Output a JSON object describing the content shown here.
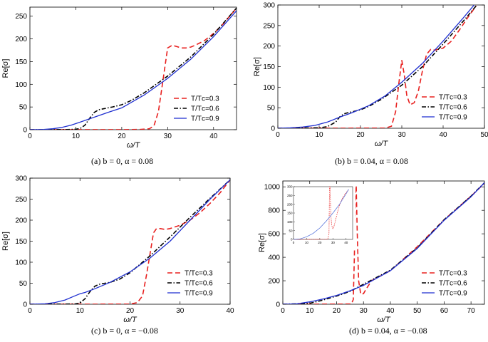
{
  "colors": {
    "t03": "#e8201f",
    "t06": "#000000",
    "t09": "#1f2fd0",
    "inset": "#4a6bd8"
  },
  "legend": [
    "T/Tᴄ=0.3",
    "T/Tᴄ=0.6",
    "T/Tᴄ=0.9"
  ],
  "chart_data": [
    {
      "type": "line",
      "caption": "(a)  b = 0,  α = 0.08",
      "xlabel": "ω/T",
      "ylabel": "Re[σ]",
      "xlim": [
        0,
        45
      ],
      "ylim": [
        0,
        270
      ],
      "xticks": [
        0,
        10,
        20,
        30,
        40
      ],
      "yticks": [
        0,
        50,
        100,
        150,
        200,
        250
      ],
      "series": [
        {
          "name": "T/Tc=0.3",
          "x": [
            0,
            20,
            24,
            26,
            27,
            28,
            29,
            30,
            31,
            32,
            33,
            34,
            35,
            36,
            38,
            40,
            42,
            45
          ],
          "values": [
            0,
            0.2,
            0.5,
            2,
            8,
            40,
            110,
            180,
            186,
            183,
            180,
            180,
            182,
            186,
            196,
            212,
            232,
            268
          ]
        },
        {
          "name": "T/Tc=0.6",
          "x": [
            0,
            8,
            10,
            11,
            12,
            13,
            14,
            15,
            16,
            17,
            18,
            20,
            22,
            25,
            30,
            35,
            40,
            45
          ],
          "values": [
            0,
            0.3,
            1,
            3,
            10,
            25,
            38,
            44,
            46,
            48,
            50,
            55,
            64,
            82,
            118,
            160,
            210,
            268
          ]
        },
        {
          "name": "T/Tc=0.9",
          "x": [
            0,
            3,
            5,
            7,
            9,
            11,
            13,
            15,
            17,
            20,
            25,
            30,
            35,
            40,
            45
          ],
          "values": [
            0,
            0.5,
            2,
            5,
            10,
            17,
            24,
            31,
            38,
            48,
            77,
            113,
            155,
            205,
            262
          ]
        }
      ]
    },
    {
      "type": "line",
      "caption": "(b)  b = 0.04,  α = 0.08",
      "xlabel": "ω/T",
      "ylabel": "Re[σ]",
      "xlim": [
        0,
        50
      ],
      "ylim": [
        0,
        300
      ],
      "xticks": [
        0,
        10,
        20,
        30,
        40,
        50
      ],
      "yticks": [
        0,
        50,
        100,
        150,
        200,
        250,
        300
      ],
      "series": [
        {
          "name": "T/Tc=0.3",
          "x": [
            0,
            26,
            27.5,
            28.5,
            29.3,
            30,
            30.6,
            31.2,
            32,
            33,
            34,
            35,
            36,
            37,
            38,
            40,
            42,
            44,
            46,
            48
          ],
          "values": [
            0,
            0.3,
            5,
            40,
            110,
            165,
            130,
            80,
            57,
            62,
            90,
            140,
            180,
            192,
            190,
            195,
            212,
            240,
            270,
            298
          ]
        },
        {
          "name": "T/Tc=0.6",
          "x": [
            0,
            10,
            12,
            14,
            15,
            16,
            17,
            18,
            20,
            22,
            25,
            30,
            35,
            40,
            45,
            48
          ],
          "values": [
            0,
            1,
            4,
            15,
            28,
            35,
            38,
            40,
            45,
            53,
            70,
            105,
            150,
            205,
            262,
            298
          ]
        },
        {
          "name": "T/Tc=0.9",
          "x": [
            0,
            3,
            6,
            9,
            12,
            15,
            18,
            22,
            26,
            30,
            35,
            40,
            45,
            47.5
          ],
          "values": [
            0,
            1,
            3,
            7,
            15,
            27,
            38,
            55,
            79,
            112,
            158,
            212,
            270,
            300
          ]
        }
      ]
    },
    {
      "type": "line",
      "caption": "(c)  b = 0,  α = −0.08",
      "xlabel": "ω/T",
      "ylabel": "Re[σ]",
      "xlim": [
        0,
        40
      ],
      "ylim": [
        0,
        300
      ],
      "xticks": [
        0,
        10,
        20,
        30,
        40
      ],
      "yticks": [
        0,
        50,
        100,
        150,
        200,
        250,
        300
      ],
      "series": [
        {
          "name": "T/Tc=0.3",
          "x": [
            0,
            20,
            21.5,
            22.5,
            23.3,
            24,
            24.7,
            25.3,
            26,
            27,
            28,
            30,
            32,
            34,
            36,
            38,
            40
          ],
          "values": [
            0,
            0.3,
            4,
            20,
            70,
            120,
            170,
            180,
            180,
            178,
            180,
            188,
            200,
            218,
            240,
            265,
            296
          ]
        },
        {
          "name": "T/Tc=0.6",
          "x": [
            0,
            9,
            10,
            11,
            12,
            13,
            14,
            15,
            16,
            18,
            20,
            24,
            28,
            32,
            36,
            40
          ],
          "values": [
            0,
            0.5,
            3,
            13,
            30,
            43,
            48,
            50,
            52,
            60,
            75,
            115,
            160,
            207,
            252,
            296
          ]
        },
        {
          "name": "T/Tc=0.9",
          "x": [
            0,
            3,
            5,
            7,
            9,
            10,
            11,
            13,
            16,
            20,
            24,
            28,
            32,
            36,
            40
          ],
          "values": [
            0,
            1,
            4,
            10,
            20,
            25,
            28,
            37,
            52,
            77,
            110,
            150,
            200,
            250,
            296
          ]
        }
      ]
    },
    {
      "type": "line",
      "caption": "(d)  b = 0.04,  α = −0.08",
      "xlabel": "ω/T",
      "ylabel": "Re[σ]",
      "xlim": [
        0,
        75
      ],
      "ylim": [
        0,
        1050
      ],
      "xticks": [
        0,
        10,
        20,
        30,
        40,
        50,
        60,
        70
      ],
      "yticks": [
        0,
        200,
        400,
        600,
        800,
        1000
      ],
      "series": [
        {
          "name": "T/Tc=0.3",
          "x": [
            0,
            25.5,
            26.2,
            26.6,
            27,
            27.3,
            27.7,
            28.2,
            29,
            30,
            31,
            33,
            35,
            40,
            50,
            60,
            70,
            75
          ],
          "values": [
            0,
            2,
            40,
            400,
            920,
            1010,
            600,
            200,
            85,
            90,
            130,
            200,
            225,
            285,
            490,
            720,
            920,
            1030
          ]
        },
        {
          "name": "T/Tc=0.6",
          "x": [
            0,
            10,
            14,
            17,
            20,
            25,
            30,
            40,
            50,
            60,
            70,
            75
          ],
          "values": [
            0,
            8,
            30,
            50,
            70,
            110,
            170,
            290,
            480,
            720,
            920,
            1035
          ]
        },
        {
          "name": "T/Tc=0.9",
          "x": [
            0,
            5,
            10,
            15,
            20,
            25,
            30,
            40,
            50,
            60,
            70,
            75
          ],
          "values": [
            0,
            3,
            20,
            45,
            75,
            115,
            160,
            285,
            475,
            715,
            915,
            1035
          ]
        }
      ],
      "inset": {
        "xlim": [
          0,
          45
        ],
        "ylim": [
          0,
          300
        ],
        "xticks": [
          0,
          10,
          20,
          30,
          40
        ],
        "yticks": [
          0,
          50,
          100,
          150,
          200,
          250,
          300
        ],
        "series": [
          {
            "name": "T/Tc=0.3",
            "x": [
              0,
              26,
              27,
              27.4,
              27.8,
              28.3,
              29,
              30,
              31,
              32,
              34,
              36,
              38,
              40,
              42
            ],
            "values": [
              0,
              1,
              30,
              300,
              300,
              160,
              80,
              60,
              80,
              110,
              170,
              215,
              245,
              265,
              285
            ]
          },
          {
            "name": "T/Tc=0.9",
            "x": [
              0,
              5,
              10,
              15,
              20,
              25,
              30,
              35,
              40,
              42
            ],
            "values": [
              0,
              3,
              15,
              35,
              65,
              105,
              150,
              200,
              260,
              285
            ]
          }
        ]
      }
    }
  ]
}
